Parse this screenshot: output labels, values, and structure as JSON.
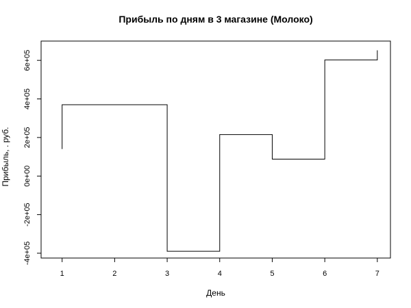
{
  "chart_data": {
    "type": "line",
    "step": "post",
    "title": "Прибыль по дням в 3 магазине (Молоко)",
    "xlabel": "День",
    "ylabel": "Прибыль, . руб.",
    "x": [
      1,
      2,
      3,
      4,
      5,
      6,
      7
    ],
    "y": [
      140000,
      370000,
      -390000,
      215000,
      88000,
      602000,
      652000
    ],
    "xlim": [
      0.6,
      7.25
    ],
    "ylim": [
      -425000,
      700000
    ],
    "x_ticks": [
      1,
      2,
      3,
      4,
      5,
      6,
      7
    ],
    "x_tick_labels": [
      "1",
      "2",
      "3",
      "4",
      "5",
      "6",
      "7"
    ],
    "y_ticks": [
      -400000,
      -200000,
      0,
      200000,
      400000,
      600000
    ],
    "y_tick_labels": [
      "-4e+05",
      "-2e+05",
      "0e+00",
      "2e+05",
      "4e+05",
      "6e+05"
    ],
    "grid": false,
    "line_color": "#000000"
  }
}
